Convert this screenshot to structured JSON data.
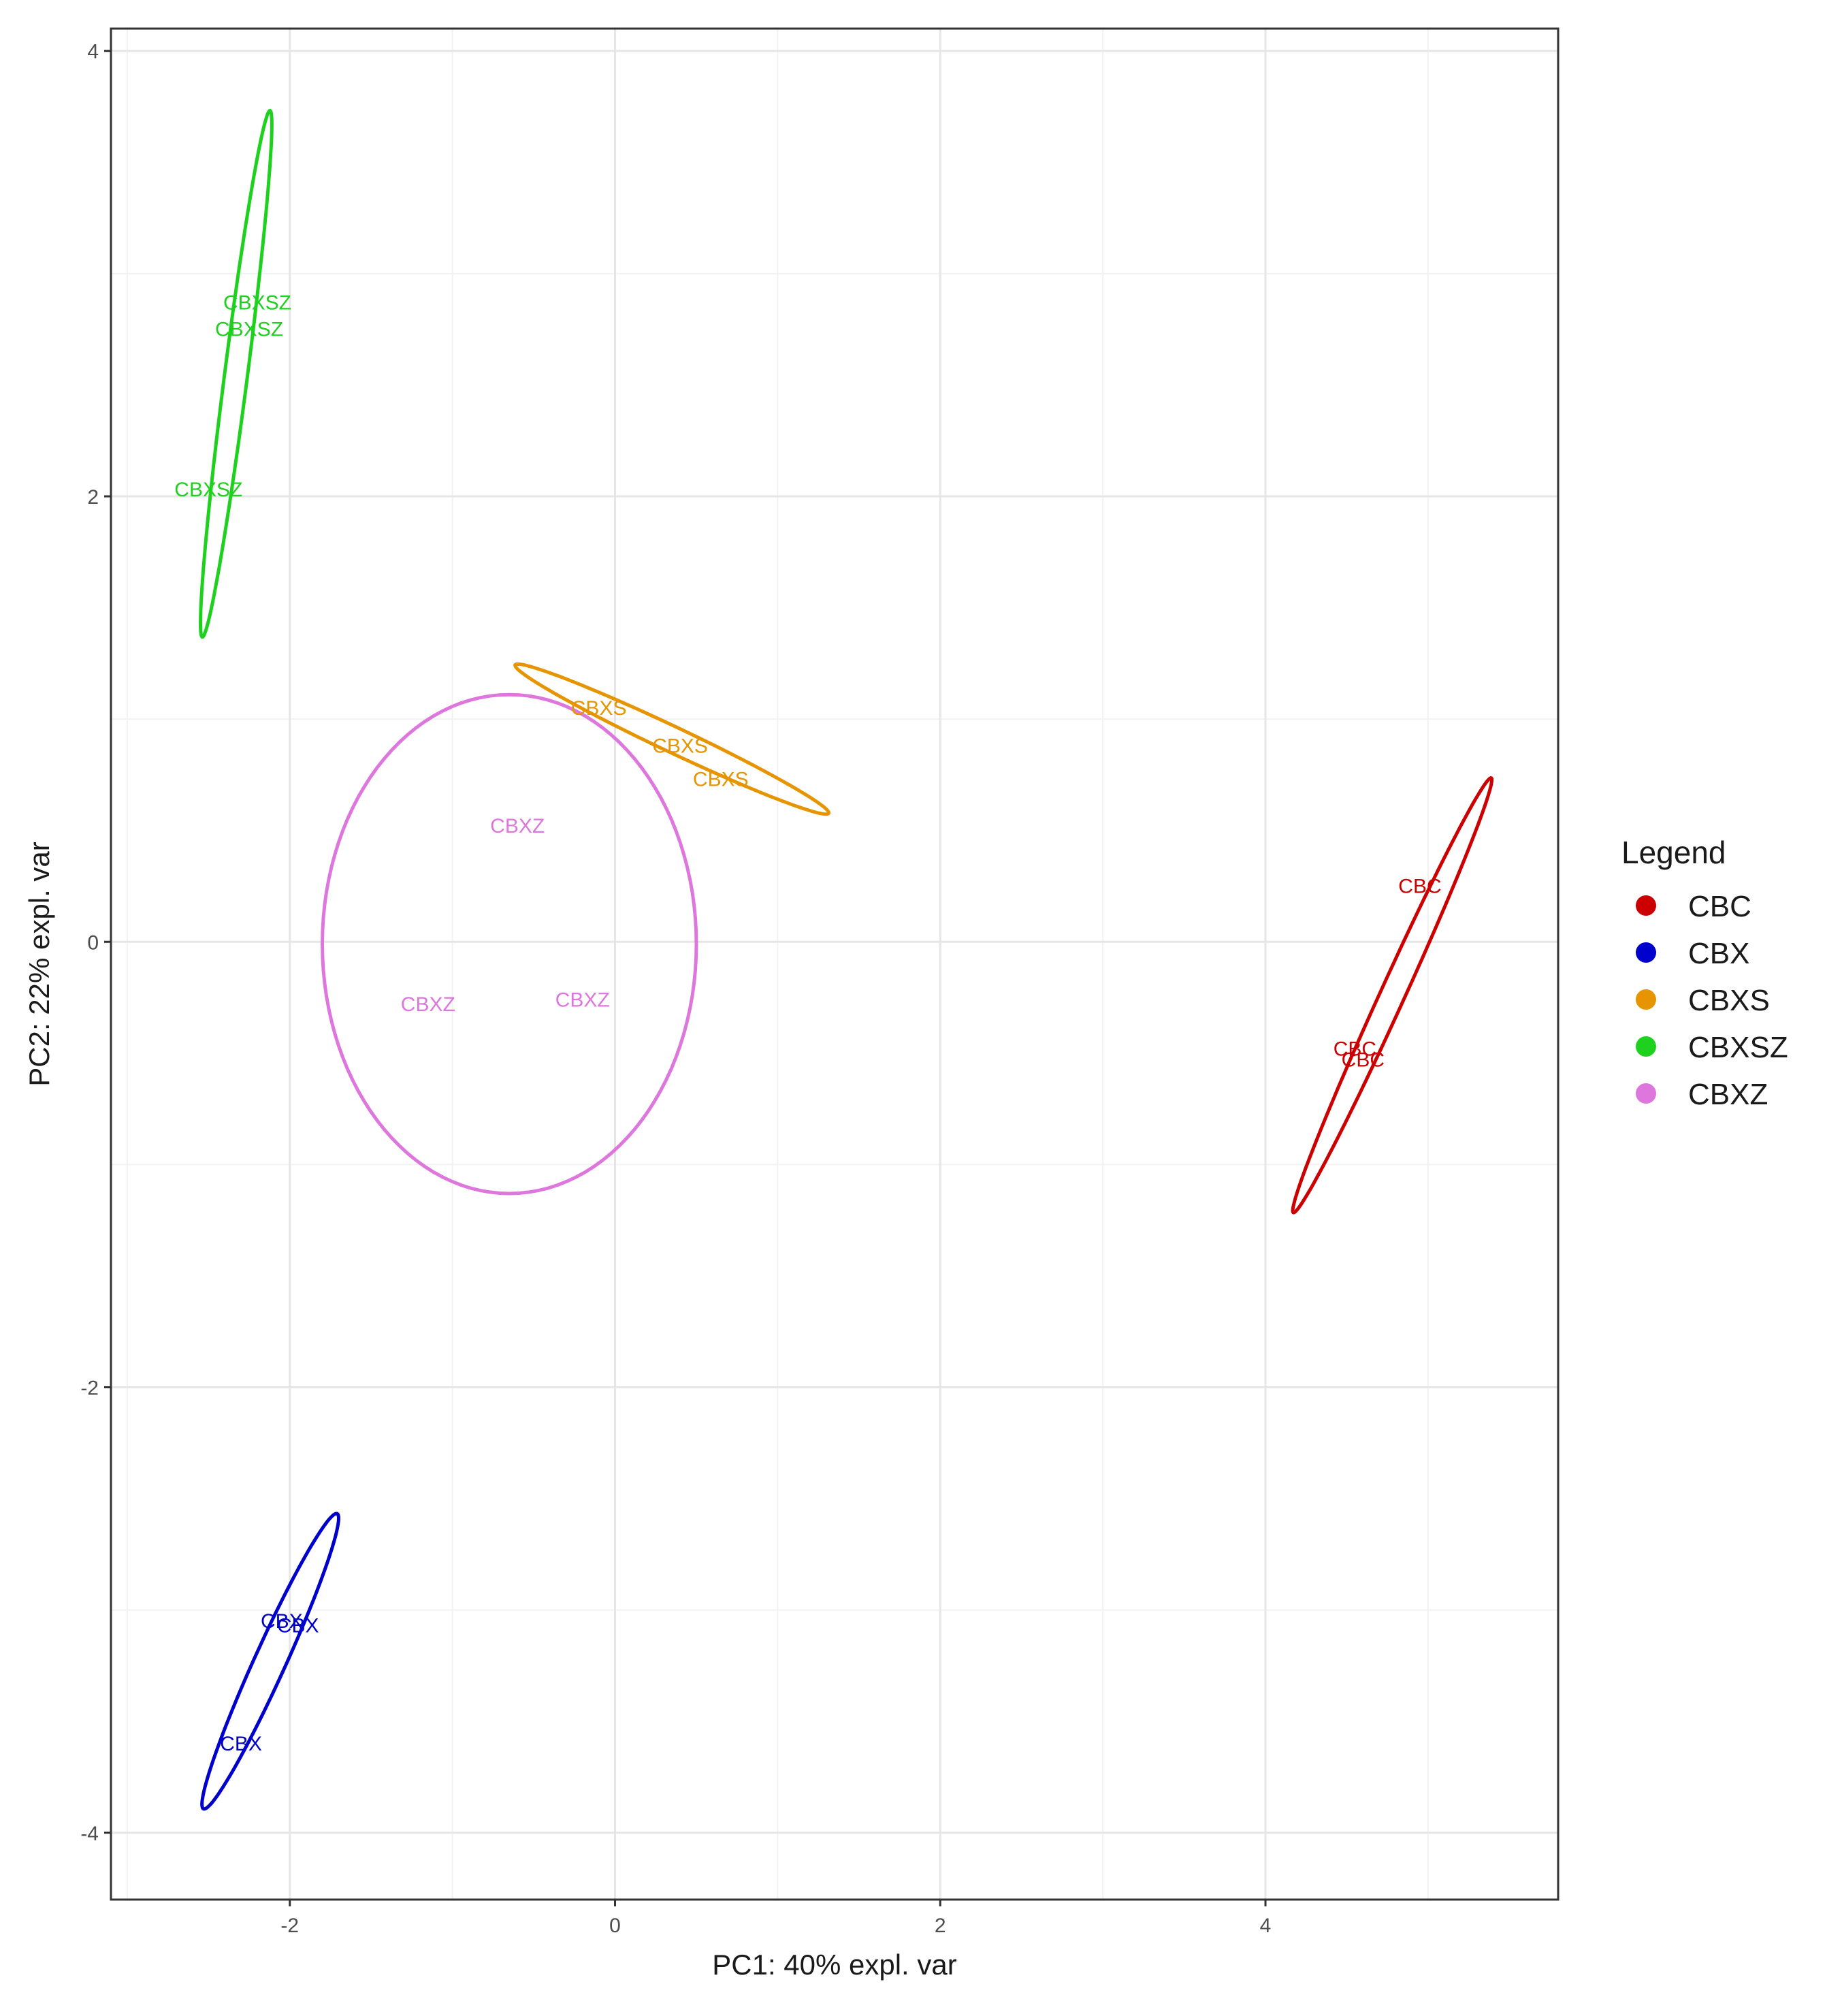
{
  "chart_data": {
    "type": "scatter",
    "xlabel": "PC1: 40% expl. var",
    "ylabel": "PC2: 22% expl. var",
    "xlim": [
      -3.1,
      5.8
    ],
    "ylim": [
      -4.3,
      4.1
    ],
    "x_ticks": [
      -2,
      0,
      2,
      4
    ],
    "y_ticks": [
      -4,
      -2,
      0,
      2,
      4
    ],
    "grid": true,
    "legend": {
      "title": "Legend",
      "placement": "right"
    },
    "series": [
      {
        "name": "CBC",
        "color": "#cc0000",
        "points": [
          {
            "x": 4.95,
            "y": 0.25,
            "label": "CBC"
          },
          {
            "x": 4.55,
            "y": -0.48,
            "label": "CBC"
          },
          {
            "x": 4.6,
            "y": -0.53,
            "label": "CBC"
          }
        ],
        "ellipse": {
          "x": 4.78,
          "y": -0.24,
          "rx": 1.15,
          "ry": 0.07,
          "angle_deg": 58
        }
      },
      {
        "name": "CBX",
        "color": "#0000cc",
        "points": [
          {
            "x": -2.05,
            "y": -3.05,
            "label": "CBX"
          },
          {
            "x": -1.95,
            "y": -3.07,
            "label": "CBX"
          },
          {
            "x": -2.3,
            "y": -3.6,
            "label": "CBX"
          }
        ],
        "ellipse": {
          "x": -2.12,
          "y": -3.23,
          "rx": 0.78,
          "ry": 0.09,
          "angle_deg": 58
        }
      },
      {
        "name": "CBXS",
        "color": "#e69500",
        "points": [
          {
            "x": -0.1,
            "y": 1.05,
            "label": "CBXS"
          },
          {
            "x": 0.4,
            "y": 0.88,
            "label": "CBXS"
          },
          {
            "x": 0.65,
            "y": 0.73,
            "label": "CBXS"
          }
        ],
        "ellipse": {
          "x": 0.35,
          "y": 0.91,
          "rx": 1.02,
          "ry": 0.06,
          "angle_deg": -19
        }
      },
      {
        "name": "CBXSZ",
        "color": "#1fd11f",
        "points": [
          {
            "x": -2.2,
            "y": 2.87,
            "label": "CBXSZ"
          },
          {
            "x": -2.25,
            "y": 2.75,
            "label": "CBXSZ"
          },
          {
            "x": -2.5,
            "y": 2.03,
            "label": "CBXSZ"
          }
        ],
        "ellipse": {
          "x": -2.33,
          "y": 2.55,
          "rx": 1.2,
          "ry": 0.07,
          "angle_deg": 80
        }
      },
      {
        "name": "CBXZ",
        "color": "#dd77dd",
        "points": [
          {
            "x": -0.6,
            "y": 0.52,
            "label": "CBXZ"
          },
          {
            "x": -1.15,
            "y": -0.28,
            "label": "CBXZ"
          },
          {
            "x": -0.2,
            "y": -0.26,
            "label": "CBXZ"
          }
        ],
        "ellipse": {
          "x": -0.65,
          "y": -0.01,
          "rx": 1.15,
          "ry": 1.12,
          "angle_deg": 0
        }
      }
    ]
  }
}
